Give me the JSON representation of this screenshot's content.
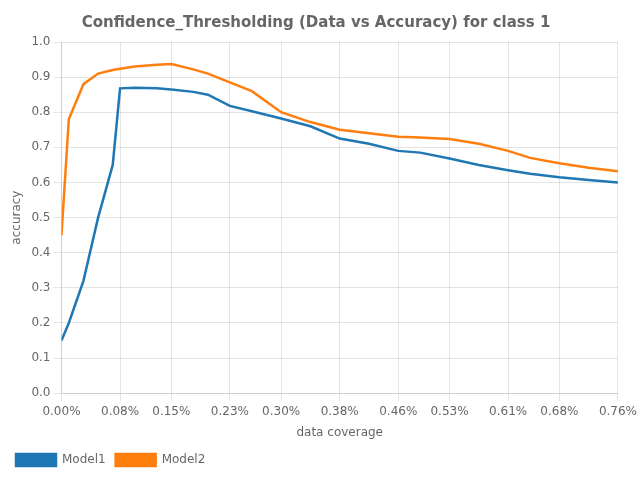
{
  "chart_data": {
    "type": "line",
    "title": "Confidence_Thresholding (Data vs Accuracy) for class 1",
    "xlabel": "data coverage",
    "ylabel": "accuracy",
    "x": [
      0.0,
      0.01,
      0.03,
      0.05,
      0.07,
      0.08,
      0.1,
      0.13,
      0.15,
      0.18,
      0.2,
      0.23,
      0.26,
      0.3,
      0.34,
      0.38,
      0.42,
      0.46,
      0.49,
      0.53,
      0.57,
      0.61,
      0.64,
      0.68,
      0.72,
      0.76
    ],
    "series": [
      {
        "name": "Model1",
        "color": "#1f77b4",
        "values": [
          0.15,
          0.2,
          0.32,
          0.5,
          0.65,
          0.868,
          0.87,
          0.868,
          0.865,
          0.858,
          0.85,
          0.818,
          0.803,
          0.782,
          0.76,
          0.725,
          0.71,
          0.69,
          0.685,
          0.668,
          0.65,
          0.635,
          0.625,
          0.615,
          0.607,
          0.6
        ]
      },
      {
        "name": "Model2",
        "color": "#ff7f0e",
        "values": [
          0.45,
          0.78,
          0.88,
          0.91,
          0.92,
          0.924,
          0.93,
          0.935,
          0.937,
          0.922,
          0.91,
          0.885,
          0.86,
          0.8,
          0.772,
          0.75,
          0.74,
          0.73,
          0.728,
          0.724,
          0.71,
          0.69,
          0.67,
          0.655,
          0.642,
          0.632
        ]
      }
    ],
    "xlim": [
      0.0,
      0.76
    ],
    "xticks": [
      {
        "value": 0.0,
        "label": "0.00%"
      },
      {
        "value": 0.08,
        "label": "0.08%"
      },
      {
        "value": 0.15,
        "label": "0.15%"
      },
      {
        "value": 0.23,
        "label": "0.23%"
      },
      {
        "value": 0.3,
        "label": "0.30%"
      },
      {
        "value": 0.38,
        "label": "0.38%"
      },
      {
        "value": 0.46,
        "label": "0.46%"
      },
      {
        "value": 0.53,
        "label": "0.53%"
      },
      {
        "value": 0.61,
        "label": "0.61%"
      },
      {
        "value": 0.68,
        "label": "0.68%"
      },
      {
        "value": 0.76,
        "label": "0.76%"
      }
    ],
    "ylim": [
      0.0,
      1.0
    ],
    "yticks": [
      {
        "value": 0.0,
        "label": "0.0"
      },
      0.1,
      0.2,
      0.3,
      0.4,
      0.5,
      0.6,
      0.7,
      0.8,
      0.9,
      {
        "value": 1.0,
        "label": "1.0"
      }
    ],
    "grid": true,
    "legend": "lower left"
  }
}
